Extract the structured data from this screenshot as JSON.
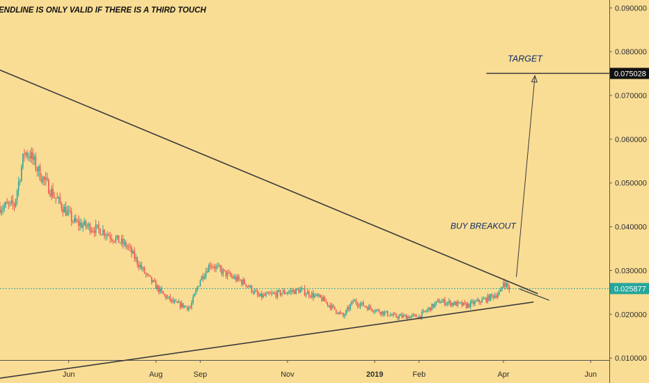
{
  "colors": {
    "background": "#f9dd95",
    "up_candle": "#26a69a",
    "down_candle": "#ef5350",
    "drawing_line": "#3a3a3a",
    "annotation_text": "#0f2a63",
    "axis_border": "#555555",
    "last_price_line": "#26a69a",
    "target_tag_bg": "#111111",
    "last_price_tag_bg": "#26a69a"
  },
  "chart_data": {
    "type": "candlestick",
    "title": "ENDLINE IS ONLY VALID IF THERE IS A THIRD TOUCH",
    "x_tick_labels": [
      "Jun",
      "Aug",
      "Sep",
      "Nov",
      "2019",
      "Feb",
      "Apr",
      "Jun"
    ],
    "y_tick_labels": [
      "0.090000",
      "0.080000",
      "0.070000",
      "0.060000",
      "0.050000",
      "0.040000",
      "0.030000",
      "0.020000",
      "0.010000"
    ],
    "y_ticks": [
      0.09,
      0.08,
      0.07,
      0.06,
      0.05,
      0.04,
      0.03,
      0.02,
      0.01
    ],
    "ylim": [
      0.0043,
      0.0918
    ],
    "xlim": [
      "2018-04-14",
      "2019-06-14"
    ],
    "grid": false,
    "last_price": 0.025877,
    "last_price_label": "0.025877",
    "target_price": 0.075028,
    "target_label": "0.075028",
    "approx_close_series": [
      {
        "date": "2018-04-14",
        "close": 0.0445
      },
      {
        "date": "2018-04-24",
        "close": 0.045
      },
      {
        "date": "2018-05-01",
        "close": 0.057
      },
      {
        "date": "2018-05-05",
        "close": 0.0565
      },
      {
        "date": "2018-05-12",
        "close": 0.052
      },
      {
        "date": "2018-05-22",
        "close": 0.047
      },
      {
        "date": "2018-06-05",
        "close": 0.041
      },
      {
        "date": "2018-06-25",
        "close": 0.039
      },
      {
        "date": "2018-07-12",
        "close": 0.0355
      },
      {
        "date": "2018-07-25",
        "close": 0.029
      },
      {
        "date": "2018-08-06",
        "close": 0.0245
      },
      {
        "date": "2018-08-14",
        "close": 0.0225
      },
      {
        "date": "2018-08-25",
        "close": 0.0215
      },
      {
        "date": "2018-09-01",
        "close": 0.028
      },
      {
        "date": "2018-09-08",
        "close": 0.0315
      },
      {
        "date": "2018-09-20",
        "close": 0.029
      },
      {
        "date": "2018-10-03",
        "close": 0.027
      },
      {
        "date": "2018-10-12",
        "close": 0.024
      },
      {
        "date": "2018-10-30",
        "close": 0.025
      },
      {
        "date": "2018-11-10",
        "close": 0.0255
      },
      {
        "date": "2018-11-25",
        "close": 0.0235
      },
      {
        "date": "2018-12-10",
        "close": 0.0195
      },
      {
        "date": "2018-12-17",
        "close": 0.023
      },
      {
        "date": "2018-12-28",
        "close": 0.0215
      },
      {
        "date": "2019-01-15",
        "close": 0.0195
      },
      {
        "date": "2019-02-01",
        "close": 0.0195
      },
      {
        "date": "2019-02-15",
        "close": 0.023
      },
      {
        "date": "2019-03-06",
        "close": 0.022
      },
      {
        "date": "2019-03-20",
        "close": 0.0235
      },
      {
        "date": "2019-03-30",
        "close": 0.025
      },
      {
        "date": "2019-04-01",
        "close": 0.0275
      },
      {
        "date": "2019-04-05",
        "close": 0.025877
      }
    ],
    "drawings": {
      "descending_trendline": {
        "start": {
          "date": "2018-04-14",
          "price": 0.0758
        },
        "end": {
          "date": "2019-04-25",
          "price": 0.0247
        }
      },
      "ascending_trendline": {
        "start": {
          "date": "2018-04-14",
          "price": 0.0054
        },
        "end": {
          "date": "2019-04-22",
          "price": 0.0228
        }
      },
      "extension_line": {
        "start": {
          "date": "2019-04-12",
          "price": 0.0258
        },
        "end": {
          "date": "2019-05-03",
          "price": 0.0232
        }
      },
      "arrow": {
        "start": {
          "date": "2019-04-10",
          "price": 0.0285
        },
        "end": {
          "date": "2019-04-23",
          "price": 0.0745
        }
      },
      "target_line": {
        "start": {
          "date": "2019-03-20",
          "price": 0.075028
        },
        "end": {
          "date": "2019-06-14",
          "price": 0.075028
        }
      }
    },
    "annotations": [
      {
        "text": "TARGET",
        "date": "2019-04-04",
        "price": 0.0777
      },
      {
        "text": "BUY BREAKOUT",
        "date": "2019-02-23",
        "price": 0.0395
      }
    ]
  }
}
